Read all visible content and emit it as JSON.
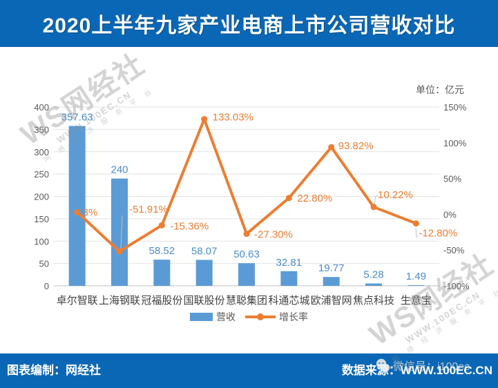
{
  "banner": {
    "title": "2020上半年九家产业电商上市公司营收对比"
  },
  "unit_label": "单位：亿元",
  "chart_data": {
    "type": "bar+line combo",
    "categories": [
      "卓尔智联",
      "上海钢联",
      "冠福股份",
      "国联股份",
      "慧聪集团",
      "科通芯城",
      "欧浦智网",
      "焦点科技",
      "生意宝"
    ],
    "series": [
      {
        "name": "营收",
        "type": "bar",
        "axis": "left",
        "color": "#5B9BD5",
        "label_color": "#4a8ccc",
        "values": [
          357.63,
          240,
          58.52,
          58.07,
          50.63,
          32.81,
          19.77,
          5.28,
          1.49
        ],
        "labels": [
          "357.63",
          "240",
          "58.52",
          "58.07",
          "50.63",
          "32.81",
          "19.77",
          "5.28",
          "1.49"
        ]
      },
      {
        "name": "增长率",
        "type": "line",
        "axis": "right",
        "color": "#ED7D31",
        "values": [
          3,
          -51.91,
          -15.36,
          133.03,
          -27.3,
          22.8,
          93.82,
          10.22,
          -12.8
        ],
        "labels": [
          "3%",
          "-51.91%",
          "-15.36%",
          "133.03%",
          "-27.30%",
          "22.80%",
          "93.82%",
          "10.22%",
          "-12.80%"
        ]
      }
    ],
    "left_axis": {
      "min": 0,
      "max": 400,
      "step": 50
    },
    "right_axis": {
      "min": -100,
      "max": 150,
      "step": 50,
      "suffix": "%"
    },
    "grid": "horizontal",
    "legend_position": "bottom",
    "tick_color": "#595959",
    "category_label_color": "#404040"
  },
  "watermark": {
    "brand": "WS网经社",
    "url": "WWW.100EC.CN",
    "slogan": "网 络 经 济 服 务 平 台"
  },
  "footer": {
    "left": "图表编制：网经社",
    "right": "数据来源：WWW.100EC.CN",
    "overlay": "微信号：i100ec"
  }
}
